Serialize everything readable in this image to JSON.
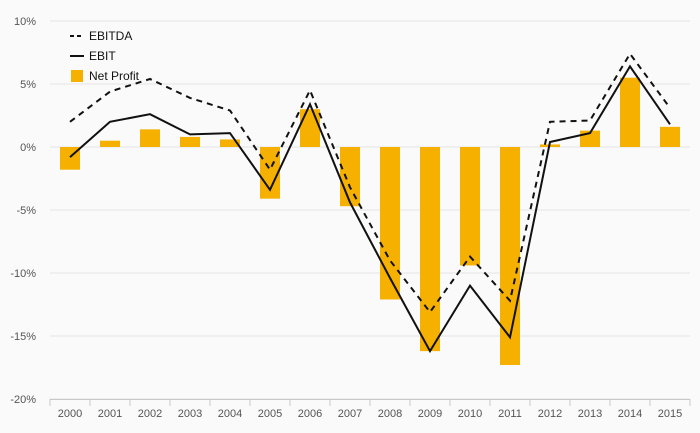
{
  "chart_data": {
    "type": "bar",
    "categories": [
      "2000",
      "2001",
      "2002",
      "2003",
      "2004",
      "2005",
      "2006",
      "2007",
      "2008",
      "2009",
      "2010",
      "2011",
      "2012",
      "2013",
      "2014",
      "2015"
    ],
    "ylim": [
      -20,
      10
    ],
    "yticks": [
      10,
      5,
      0,
      -5,
      -10,
      -15,
      -20
    ],
    "ytick_labels": [
      "10%",
      "5%",
      "0%",
      "-5%",
      "-10%",
      "-15%",
      "-20%"
    ],
    "grid": true,
    "legend_position": "top-left",
    "series": [
      {
        "name": "EBITDA",
        "kind": "line",
        "style": "dashed",
        "color": "#111111",
        "values": [
          2.0,
          4.4,
          5.4,
          3.9,
          2.9,
          -1.8,
          4.5,
          -3.2,
          -9.0,
          -13.1,
          -8.7,
          -12.2,
          2.0,
          2.1,
          7.4,
          3.1
        ]
      },
      {
        "name": "EBIT",
        "kind": "line",
        "style": "solid",
        "color": "#111111",
        "values": [
          -0.8,
          2.0,
          2.6,
          1.0,
          1.1,
          -3.4,
          3.4,
          -4.4,
          -10.4,
          -16.2,
          -11.0,
          -15.1,
          0.4,
          1.1,
          6.4,
          1.8
        ]
      },
      {
        "name": "Net Profit",
        "kind": "bar",
        "color": "#f5b000",
        "values": [
          -1.8,
          0.5,
          1.4,
          0.8,
          0.6,
          -4.1,
          3.0,
          -4.7,
          -12.1,
          -16.2,
          -9.4,
          -17.3,
          0.2,
          1.3,
          5.5,
          1.6
        ]
      }
    ]
  }
}
